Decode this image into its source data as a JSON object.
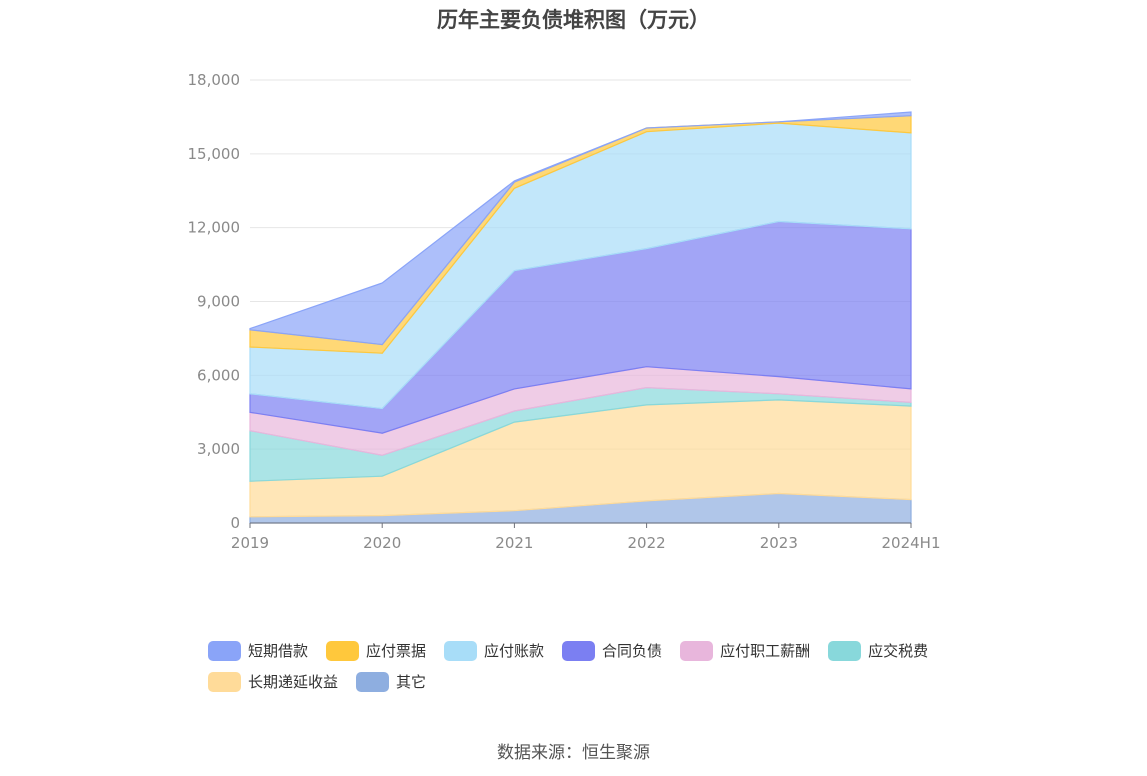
{
  "chart_data": {
    "type": "area",
    "stacked": true,
    "title": "历年主要负债堆积图（万元）",
    "categories": [
      "2019",
      "2020",
      "2021",
      "2022",
      "2023",
      "2024H1"
    ],
    "ylim": [
      0,
      18000
    ],
    "yticks": [
      "0",
      "3,000",
      "6,000",
      "9,000",
      "12,000",
      "15,000",
      "18,000"
    ],
    "ytick_values": [
      0,
      3000,
      6000,
      9000,
      12000,
      15000,
      18000
    ],
    "grid": true,
    "legend_position": "bottom",
    "series": [
      {
        "name": "其它",
        "color": "#8eaee0",
        "values": [
          250,
          300,
          500,
          900,
          1200,
          950
        ]
      },
      {
        "name": "长期递延收益",
        "color": "#ffdb99",
        "values": [
          1450,
          1600,
          3600,
          3900,
          3800,
          3800
        ]
      },
      {
        "name": "应交税费",
        "color": "#88d8db",
        "values": [
          2050,
          850,
          450,
          700,
          250,
          150
        ]
      },
      {
        "name": "应付职工薪酬",
        "color": "#e8b6dc",
        "values": [
          750,
          900,
          900,
          850,
          700,
          550
        ]
      },
      {
        "name": "合同负债",
        "color": "#7b7ff2",
        "values": [
          750,
          1000,
          4800,
          4800,
          6300,
          6500
        ]
      },
      {
        "name": "应付账款",
        "color": "#a8ddf8",
        "values": [
          1900,
          2250,
          3350,
          4750,
          4000,
          3900
        ]
      },
      {
        "name": "应付票据",
        "color": "#ffc83c",
        "values": [
          700,
          350,
          250,
          150,
          50,
          700
        ]
      },
      {
        "name": "短期借款",
        "color": "#8aa4f8",
        "values": [
          50,
          2500,
          50,
          0,
          0,
          150
        ]
      }
    ],
    "legend_order": [
      "短期借款",
      "应付票据",
      "应付账款",
      "合同负债",
      "应付职工薪酬",
      "应交税费",
      "长期递延收益",
      "其它"
    ]
  },
  "footer": {
    "source": "数据来源：恒生聚源"
  }
}
